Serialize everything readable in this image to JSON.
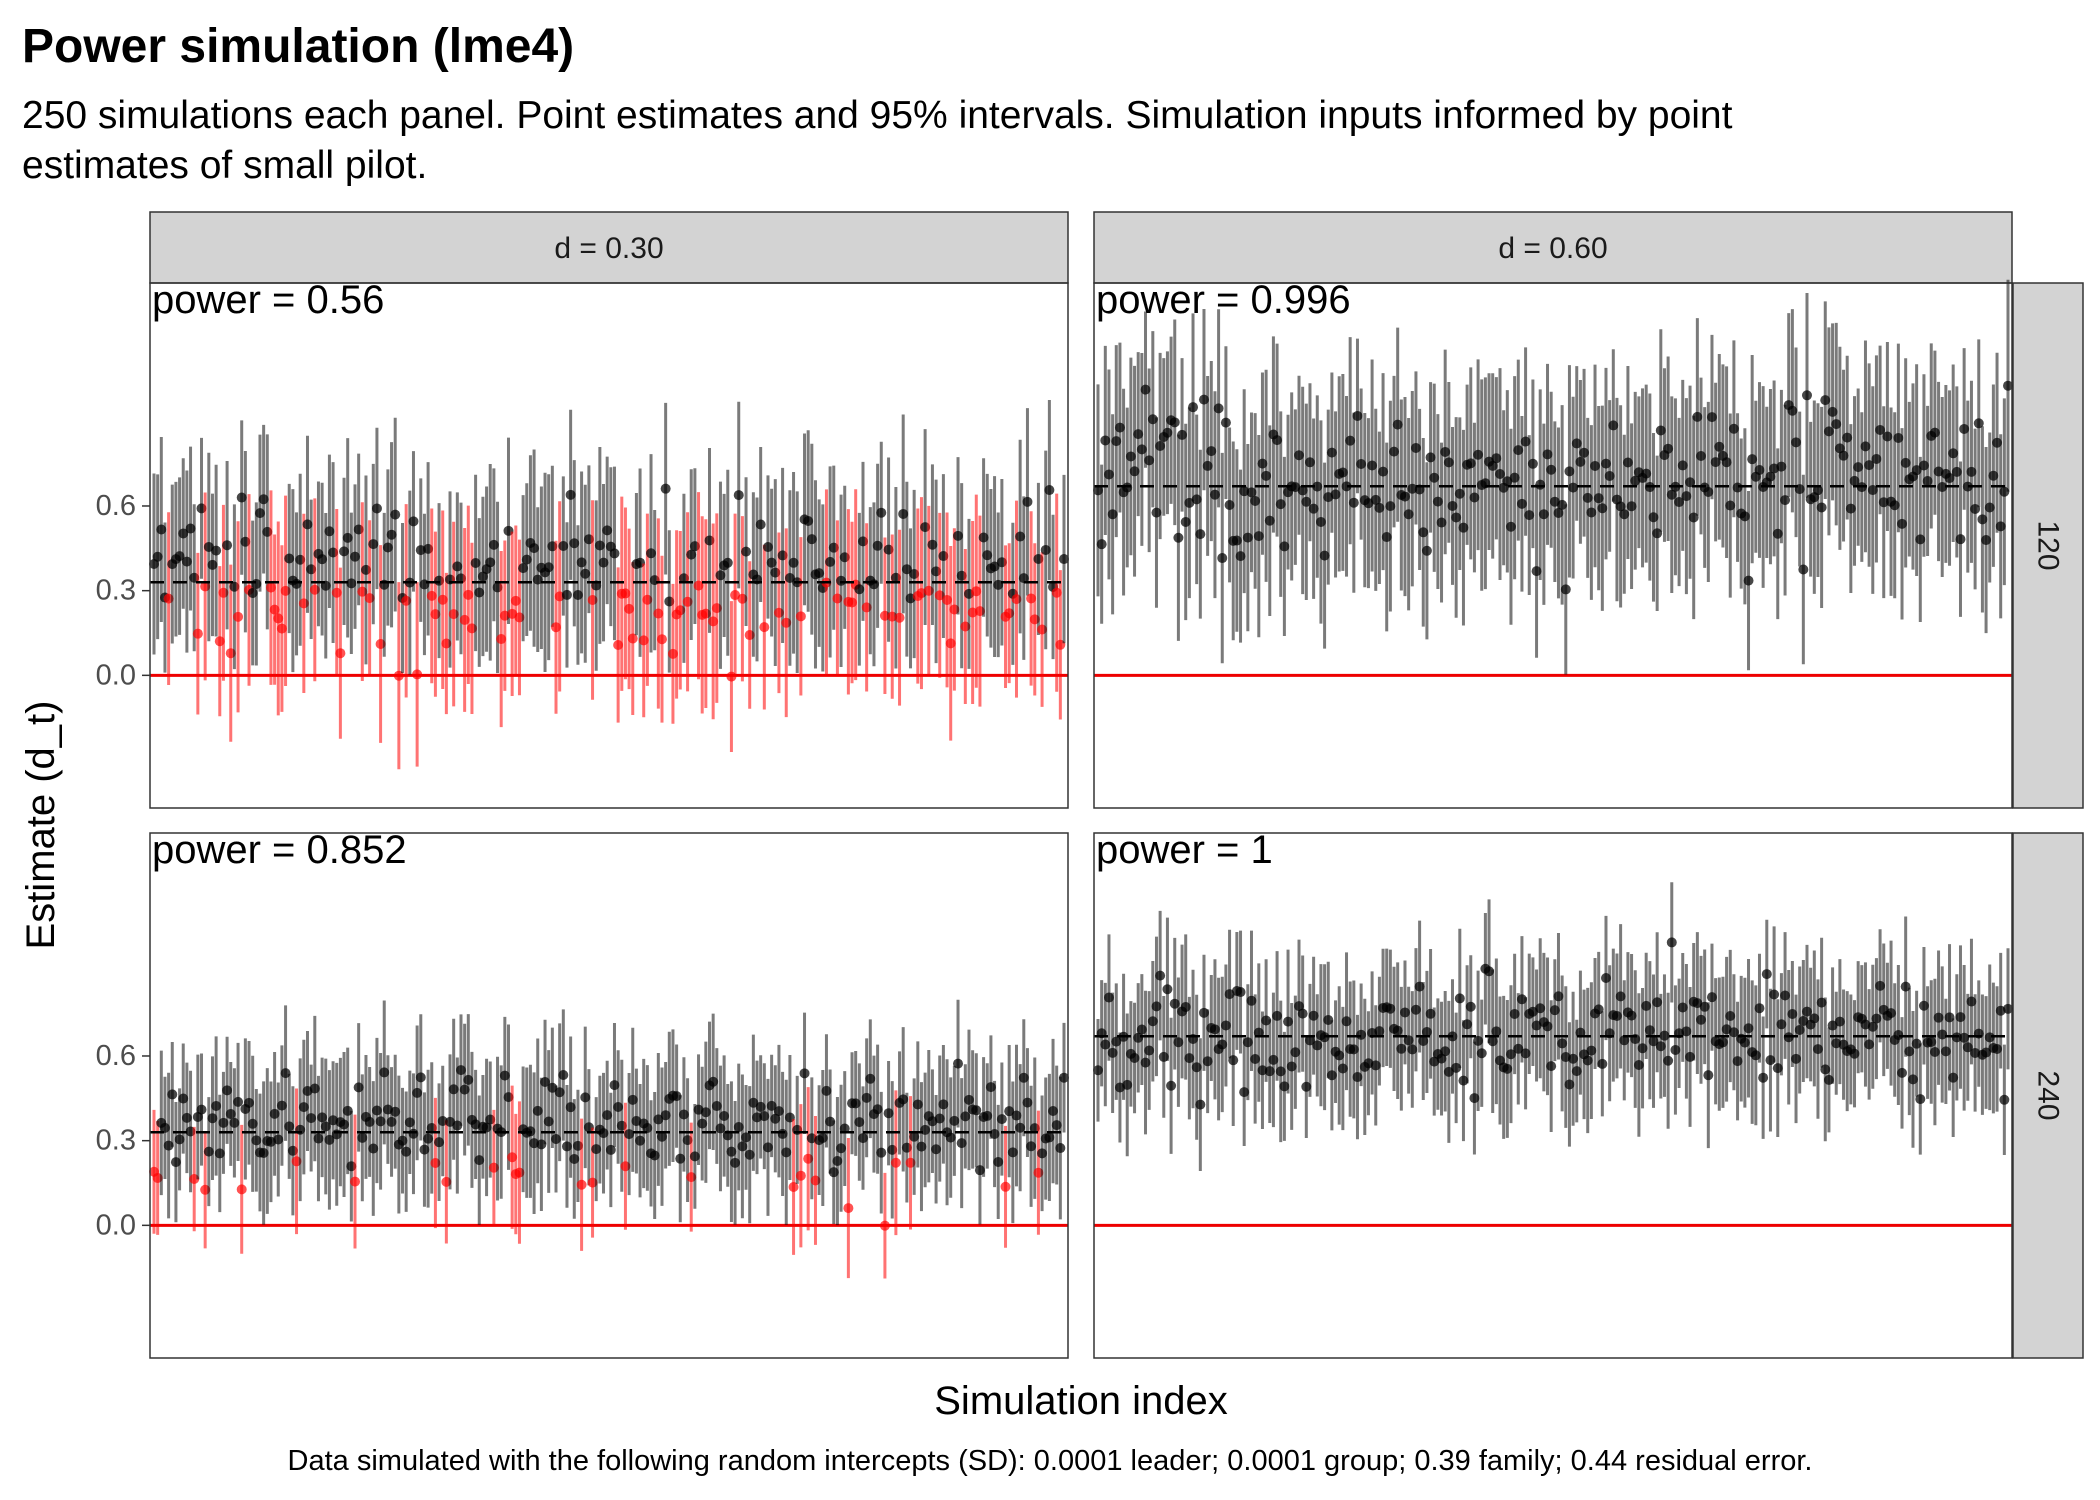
{
  "chart_data": {
    "type": "scatter",
    "title": "Power simulation (lme4)",
    "subtitle_lines": [
      "250 simulations each panel. Point estimates and 95% intervals. Simulation inputs informed by point",
      "estimates of small pilot."
    ],
    "xlabel": "Simulation index",
    "ylabel": "Estimate (d_t)",
    "caption": "Data simulated with the following random intercepts (SD): 0.0001 leader; 0.0001 group; 0.39 family; 0.44 residual error.",
    "col_facets": [
      "d = 0.30",
      "d = 0.60"
    ],
    "row_facets": [
      "120",
      "240"
    ],
    "y_ticks": [
      0.0,
      0.3,
      0.6
    ],
    "y_tick_labels": [
      "0.0",
      "0.3",
      "0.6"
    ],
    "ylim": [
      -0.47,
      1.39
    ],
    "xlim": [
      1,
      250
    ],
    "n_sims": 250,
    "reference_line": 0,
    "grid": false,
    "colors": {
      "significant": "#000000",
      "nonsignificant": "#ff0000",
      "zero_line": "#ee0000",
      "strip_fill": "#d3d3d3",
      "panel_border": "#333333"
    },
    "panels": [
      {
        "col": "d = 0.30",
        "row": "120",
        "power_label": "power = 0.56",
        "power": 0.56,
        "true_effect": 0.33,
        "mean_est": 0.35,
        "est_sd": 0.14,
        "ci_half": 0.3
      },
      {
        "col": "d = 0.60",
        "row": "120",
        "power_label": "power = 0.996",
        "power": 0.996,
        "true_effect": 0.67,
        "mean_est": 0.7,
        "est_sd": 0.14,
        "ci_half": 0.32
      },
      {
        "col": "d = 0.30",
        "row": "240",
        "power_label": "power = 0.852",
        "power": 0.852,
        "true_effect": 0.33,
        "mean_est": 0.34,
        "est_sd": 0.1,
        "ci_half": 0.22
      },
      {
        "col": "d = 0.60",
        "row": "240",
        "power_label": "power = 1",
        "power": 1,
        "true_effect": 0.67,
        "mean_est": 0.68,
        "est_sd": 0.1,
        "ci_half": 0.22
      }
    ]
  }
}
